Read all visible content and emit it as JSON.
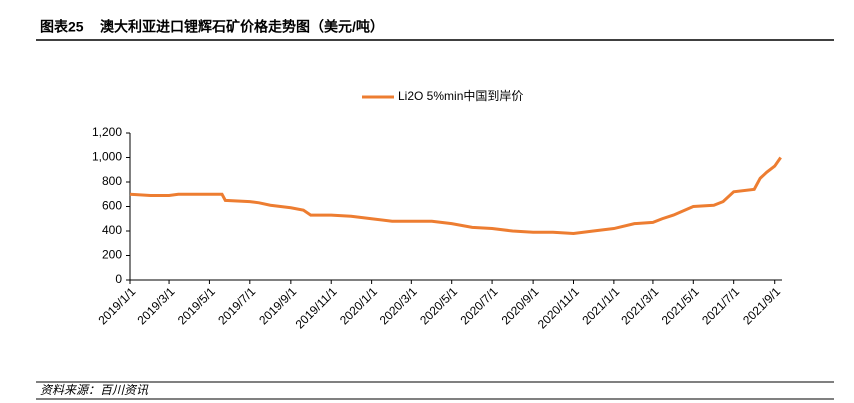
{
  "header": {
    "label": "图表25",
    "title": "澳大利亚进口锂辉石矿价格走势图（美元/吨）"
  },
  "chart_data": {
    "type": "line",
    "x": [
      "2019/1/1",
      "2019/2/1",
      "2019/3/1",
      "2019/3/15",
      "2019/5/1",
      "2019/5/20",
      "2019/5/25",
      "2019/7/1",
      "2019/7/15",
      "2019/8/1",
      "2019/9/1",
      "2019/9/20",
      "2019/10/1",
      "2019/11/1",
      "2019/12/1",
      "2020/1/1",
      "2020/2/1",
      "2020/4/1",
      "2020/5/1",
      "2020/6/1",
      "2020/7/1",
      "2020/8/1",
      "2020/9/1",
      "2020/10/1",
      "2020/11/1",
      "2020/12/1",
      "2021/1/1",
      "2021/2/1",
      "2021/3/1",
      "2021/3/15",
      "2021/4/1",
      "2021/5/1",
      "2021/6/1",
      "2021/6/15",
      "2021/7/1",
      "2021/8/1",
      "2021/8/10",
      "2021/8/20",
      "2021/9/1",
      "2021/9/10"
    ],
    "series": [
      {
        "name": "Li2O 5%min中国到岸价",
        "color": "#ed7d31",
        "values": [
          700,
          690,
          690,
          700,
          700,
          700,
          650,
          640,
          630,
          610,
          590,
          570,
          530,
          530,
          520,
          500,
          480,
          480,
          460,
          430,
          420,
          400,
          390,
          390,
          380,
          400,
          420,
          460,
          470,
          500,
          530,
          600,
          610,
          640,
          720,
          740,
          830,
          880,
          930,
          1000
        ]
      }
    ],
    "xlim": [
      "2019/1/1",
      "2021/9/12"
    ],
    "xticks": [
      "2019/1/1",
      "2019/3/1",
      "2019/5/1",
      "2019/7/1",
      "2019/9/1",
      "2019/11/1",
      "2020/1/1",
      "2020/3/1",
      "2020/5/1",
      "2020/7/1",
      "2020/9/1",
      "2020/11/1",
      "2021/1/1",
      "2021/3/1",
      "2021/5/1",
      "2021/7/1",
      "2021/9/1"
    ],
    "ylim": [
      0,
      1200
    ],
    "yticks": [
      0,
      200,
      400,
      600,
      800,
      {
        "value": 1000,
        "label": "1,000"
      },
      {
        "value": 1200,
        "label": "1,200"
      }
    ],
    "legend": "top"
  },
  "footer": {
    "source": "资料来源：百川资讯"
  }
}
